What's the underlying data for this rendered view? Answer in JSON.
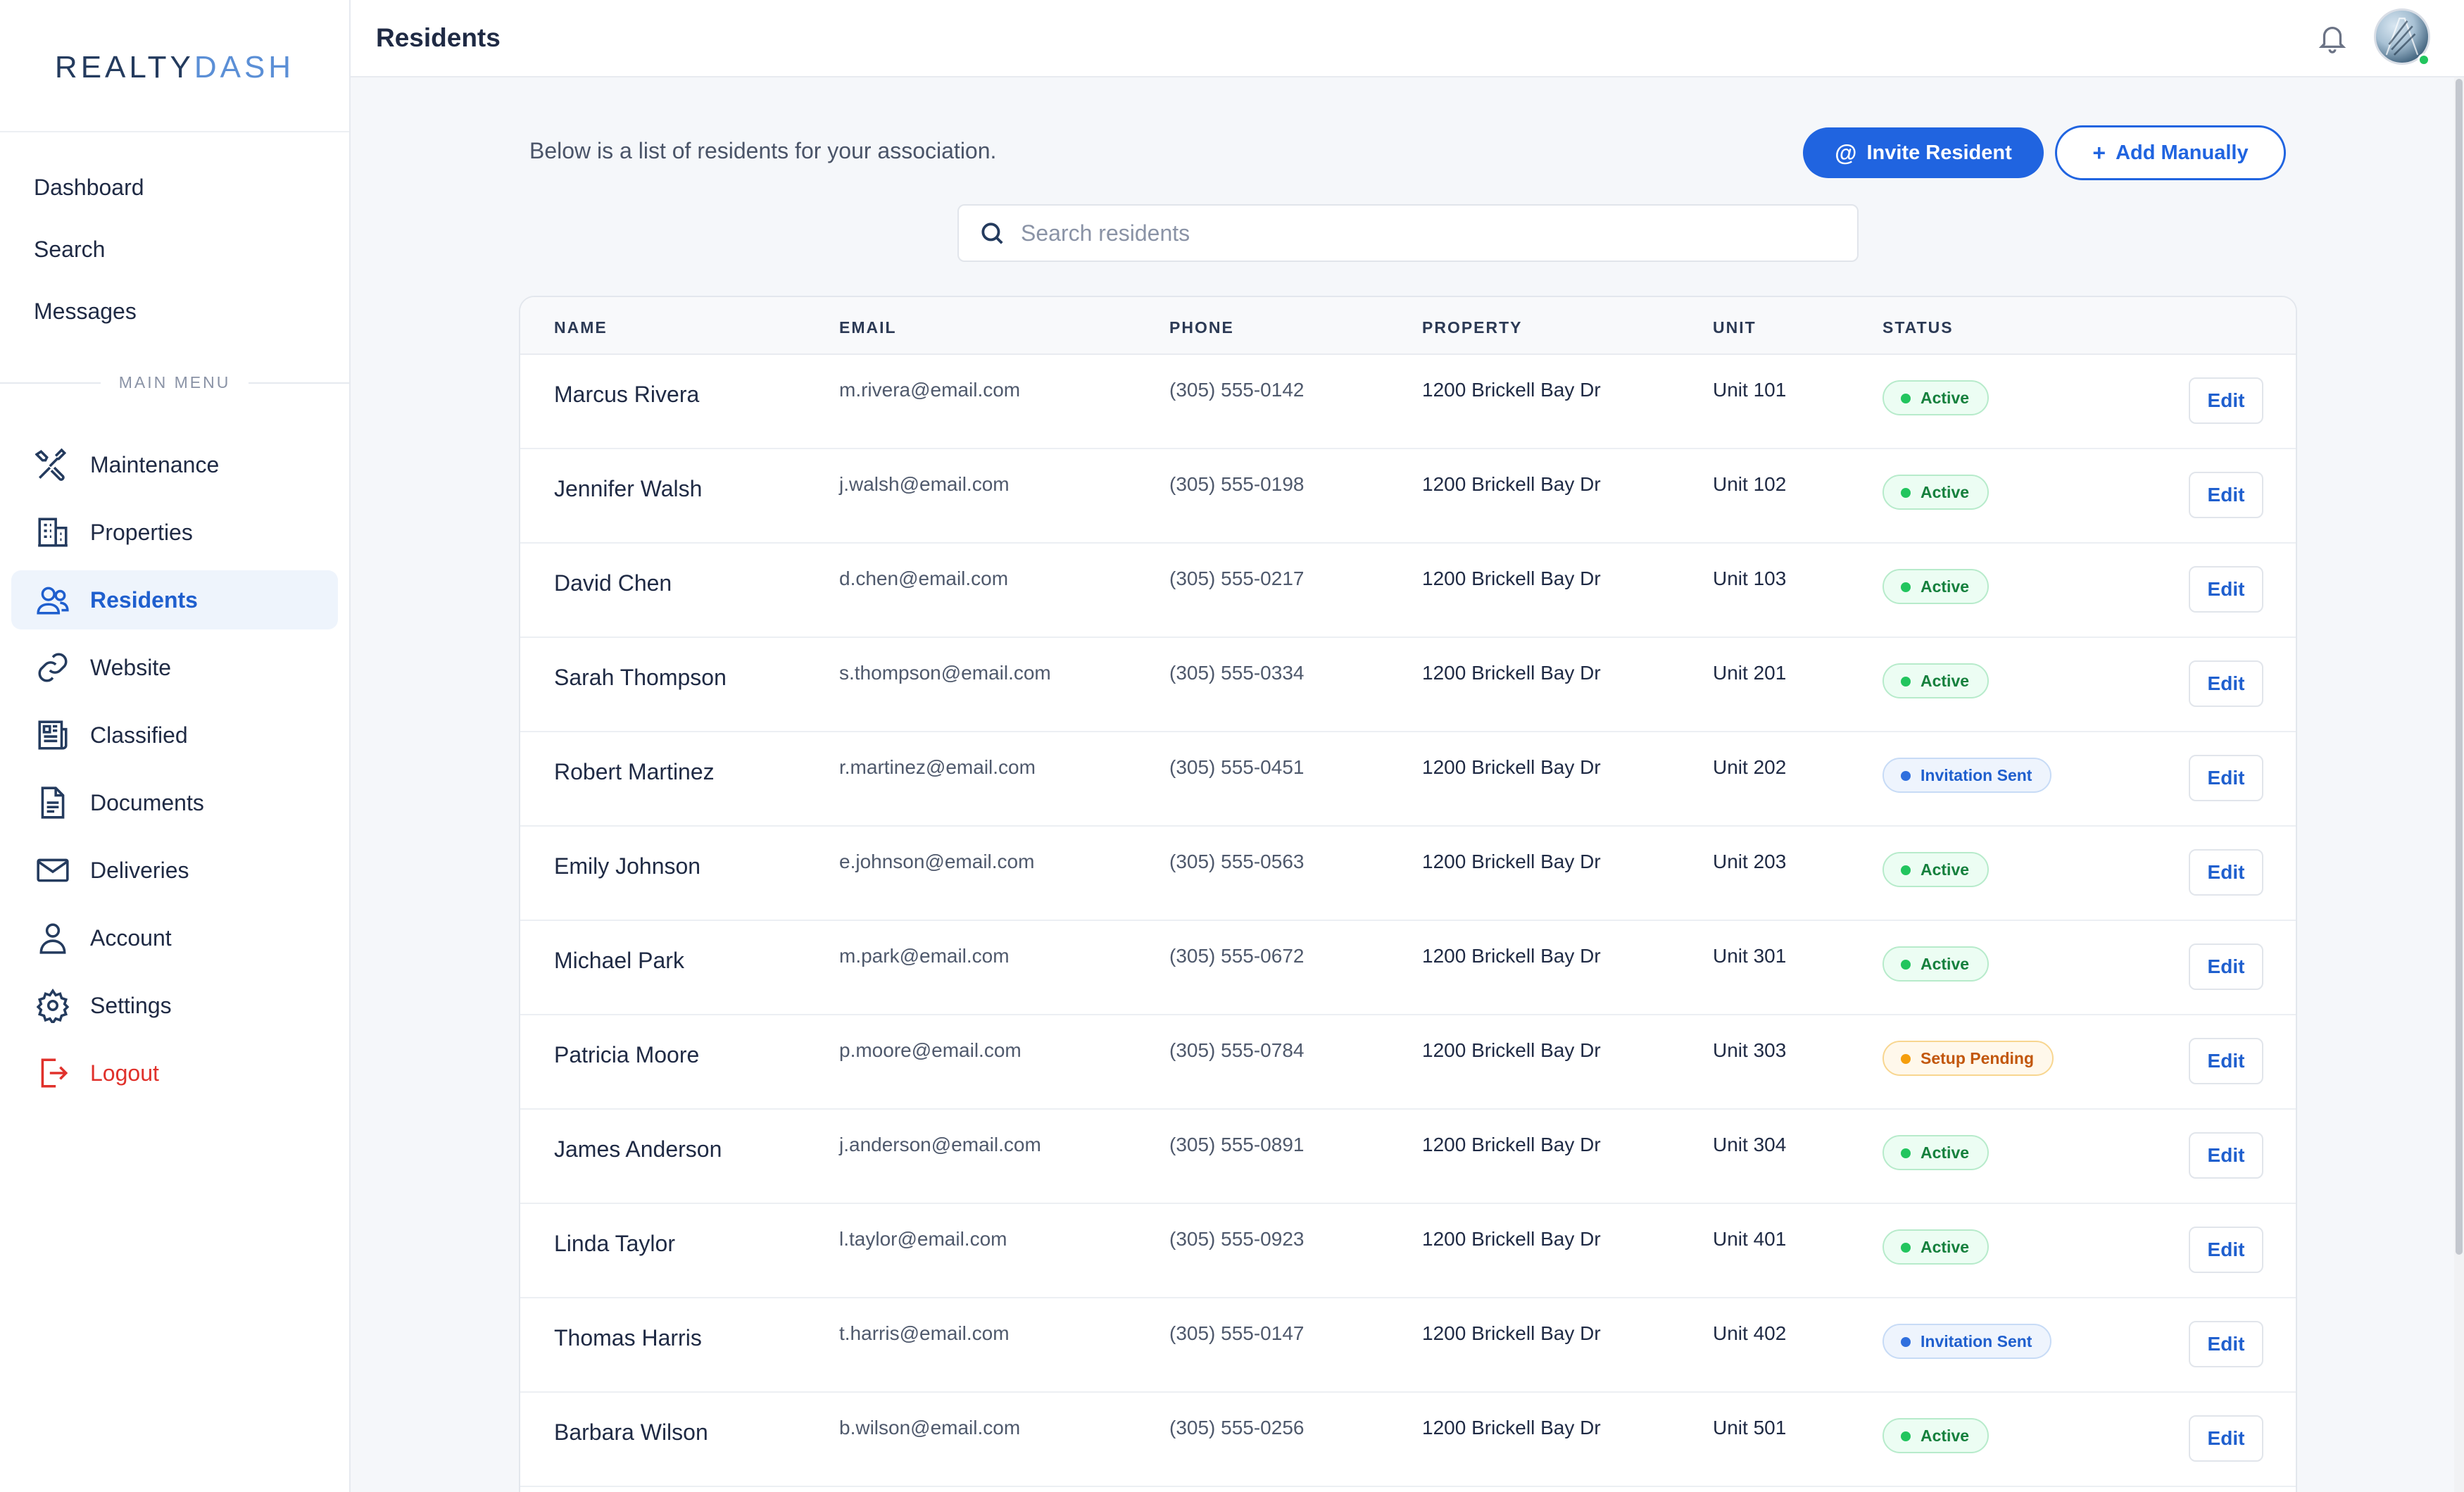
{
  "brand": {
    "part1": "REALTY",
    "part2": "DASH"
  },
  "top_nav": [
    "Dashboard",
    "Search",
    "Messages"
  ],
  "menu_heading": "MAIN MENU",
  "main_nav": [
    {
      "label": "Maintenance",
      "icon": "tools-icon"
    },
    {
      "label": "Properties",
      "icon": "building-icon"
    },
    {
      "label": "Residents",
      "icon": "users-icon",
      "active": true
    },
    {
      "label": "Website",
      "icon": "link-icon"
    },
    {
      "label": "Classified",
      "icon": "newspaper-icon"
    },
    {
      "label": "Documents",
      "icon": "document-icon"
    },
    {
      "label": "Deliveries",
      "icon": "mail-icon"
    },
    {
      "label": "Account",
      "icon": "user-icon"
    },
    {
      "label": "Settings",
      "icon": "gear-icon"
    },
    {
      "label": "Logout",
      "icon": "logout-icon"
    }
  ],
  "header": {
    "title": "Residents"
  },
  "intro": "Below is a list of residents for your association.",
  "actions": {
    "invite": "Invite Resident",
    "add": "Add Manually"
  },
  "search": {
    "placeholder": "Search residents"
  },
  "table": {
    "columns": [
      "NAME",
      "EMAIL",
      "PHONE",
      "PROPERTY",
      "UNIT",
      "STATUS"
    ],
    "edit_label": "Edit",
    "rows": [
      {
        "name": "Marcus Rivera",
        "email": "m.rivera@email.com",
        "phone": "(305) 555-0142",
        "property": "1200 Brickell Bay Dr",
        "unit": "Unit 101",
        "status": "Active"
      },
      {
        "name": "Jennifer Walsh",
        "email": "j.walsh@email.com",
        "phone": "(305) 555-0198",
        "property": "1200 Brickell Bay Dr",
        "unit": "Unit 102",
        "status": "Active"
      },
      {
        "name": "David Chen",
        "email": "d.chen@email.com",
        "phone": "(305) 555-0217",
        "property": "1200 Brickell Bay Dr",
        "unit": "Unit 103",
        "status": "Active"
      },
      {
        "name": "Sarah Thompson",
        "email": "s.thompson@email.com",
        "phone": "(305) 555-0334",
        "property": "1200 Brickell Bay Dr",
        "unit": "Unit 201",
        "status": "Active"
      },
      {
        "name": "Robert Martinez",
        "email": "r.martinez@email.com",
        "phone": "(305) 555-0451",
        "property": "1200 Brickell Bay Dr",
        "unit": "Unit 202",
        "status": "Invitation Sent"
      },
      {
        "name": "Emily Johnson",
        "email": "e.johnson@email.com",
        "phone": "(305) 555-0563",
        "property": "1200 Brickell Bay Dr",
        "unit": "Unit 203",
        "status": "Active"
      },
      {
        "name": "Michael Park",
        "email": "m.park@email.com",
        "phone": "(305) 555-0672",
        "property": "1200 Brickell Bay Dr",
        "unit": "Unit 301",
        "status": "Active"
      },
      {
        "name": "Patricia Moore",
        "email": "p.moore@email.com",
        "phone": "(305) 555-0784",
        "property": "1200 Brickell Bay Dr",
        "unit": "Unit 303",
        "status": "Setup Pending"
      },
      {
        "name": "James Anderson",
        "email": "j.anderson@email.com",
        "phone": "(305) 555-0891",
        "property": "1200 Brickell Bay Dr",
        "unit": "Unit 304",
        "status": "Active"
      },
      {
        "name": "Linda Taylor",
        "email": "l.taylor@email.com",
        "phone": "(305) 555-0923",
        "property": "1200 Brickell Bay Dr",
        "unit": "Unit 401",
        "status": "Active"
      },
      {
        "name": "Thomas Harris",
        "email": "t.harris@email.com",
        "phone": "(305) 555-0147",
        "property": "1200 Brickell Bay Dr",
        "unit": "Unit 402",
        "status": "Invitation Sent"
      },
      {
        "name": "Barbara Wilson",
        "email": "b.wilson@email.com",
        "phone": "(305) 555-0256",
        "property": "1200 Brickell Bay Dr",
        "unit": "Unit 501",
        "status": "Active"
      }
    ]
  },
  "colors": {
    "accent": "#2064e0",
    "active_status": "#22c55e",
    "invited_status": "#2f6fde",
    "pending_status": "#f59e0b",
    "logout": "#e0312b"
  }
}
